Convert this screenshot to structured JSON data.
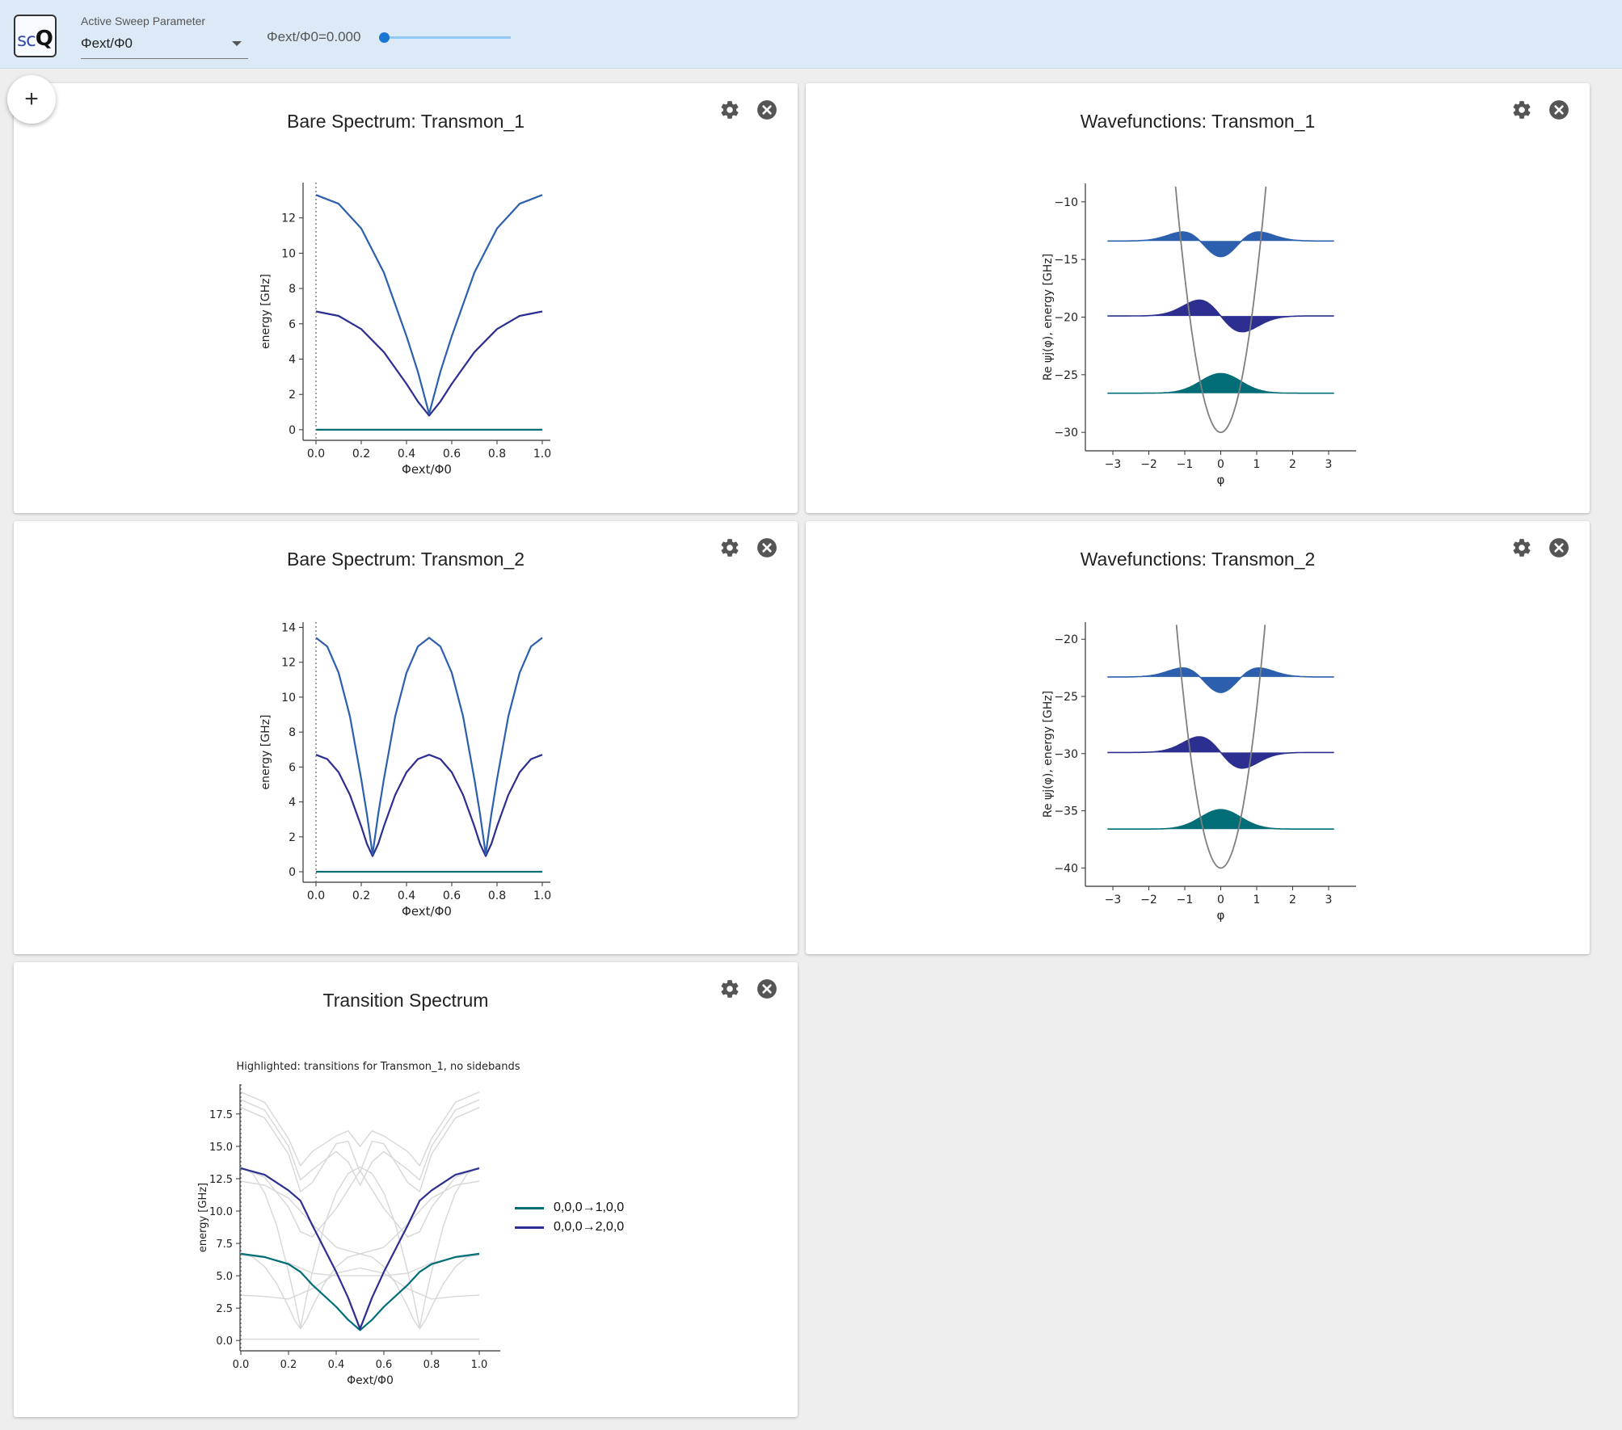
{
  "app": {
    "logo_sc": "sc",
    "logo_q": "Q"
  },
  "toolbar": {
    "sweep_label": "Active Sweep Parameter",
    "sweep_value": "Φext/Φ0",
    "slider_text": "Φext/Φ0=0.000",
    "slider_value": 0.0,
    "add_label": "+"
  },
  "colors": {
    "teal": "#006d77",
    "navy": "#2c2f8f",
    "blue": "#2c5fae",
    "gray": "#7f7f7f",
    "light": "#d7d7d7"
  },
  "panels": {
    "bare1": {
      "title": "Bare Spectrum: Transmon_1"
    },
    "wf1": {
      "title": "Wavefunctions: Transmon_1"
    },
    "bare2": {
      "title": "Bare Spectrum: Transmon_2"
    },
    "wf2": {
      "title": "Wavefunctions: Transmon_2"
    },
    "trans": {
      "title": "Transition Spectrum"
    }
  },
  "chart_data": [
    {
      "id": "bare1",
      "type": "line",
      "xlabel": "Φext/Φ0",
      "ylabel": "energy [GHz]",
      "xlim": [
        0,
        1
      ],
      "ylim": [
        -0.6,
        14
      ],
      "xticks": [
        0.0,
        0.2,
        0.4,
        0.6,
        0.8,
        1.0
      ],
      "yticks": [
        0,
        2,
        4,
        6,
        8,
        10,
        12
      ],
      "xtick_labels": [
        "0.0",
        "0.2",
        "0.4",
        "0.6",
        "0.8",
        "1.0"
      ],
      "ytick_labels": [
        "0",
        "2",
        "4",
        "6",
        "8",
        "10",
        "12"
      ],
      "marker_x": 0.0,
      "series": [
        {
          "color": "#006d77",
          "x": [
            0,
            0.5,
            1
          ],
          "y": [
            0,
            0,
            0
          ]
        },
        {
          "color": "#2c2f8f",
          "x": [
            0,
            0.1,
            0.2,
            0.3,
            0.4,
            0.45,
            0.5,
            0.55,
            0.6,
            0.7,
            0.8,
            0.9,
            1.0
          ],
          "y": [
            6.7,
            6.45,
            5.7,
            4.4,
            2.6,
            1.6,
            0.8,
            1.6,
            2.6,
            4.4,
            5.7,
            6.45,
            6.7
          ]
        },
        {
          "color": "#2c5fae",
          "x": [
            0,
            0.1,
            0.2,
            0.3,
            0.4,
            0.45,
            0.5,
            0.55,
            0.6,
            0.7,
            0.8,
            0.9,
            1.0
          ],
          "y": [
            13.3,
            12.8,
            11.4,
            8.9,
            5.3,
            3.3,
            0.9,
            3.3,
            5.3,
            8.9,
            11.4,
            12.8,
            13.3
          ]
        }
      ]
    },
    {
      "id": "bare2",
      "type": "line",
      "xlabel": "Φext/Φ0",
      "ylabel": "energy [GHz]",
      "xlim": [
        0,
        1
      ],
      "ylim": [
        -0.6,
        14.3
      ],
      "xticks": [
        0.0,
        0.2,
        0.4,
        0.6,
        0.8,
        1.0
      ],
      "yticks": [
        0,
        2,
        4,
        6,
        8,
        10,
        12,
        14
      ],
      "xtick_labels": [
        "0.0",
        "0.2",
        "0.4",
        "0.6",
        "0.8",
        "1.0"
      ],
      "ytick_labels": [
        "0",
        "2",
        "4",
        "6",
        "8",
        "10",
        "12",
        "14"
      ],
      "marker_x": 0.0,
      "series": [
        {
          "color": "#006d77",
          "x": [
            0,
            0.5,
            1
          ],
          "y": [
            0,
            0,
            0
          ]
        },
        {
          "color": "#2c2f8f",
          "x": [
            0,
            0.05,
            0.1,
            0.15,
            0.2,
            0.225,
            0.25,
            0.275,
            0.3,
            0.35,
            0.4,
            0.45,
            0.5,
            0.55,
            0.6,
            0.65,
            0.7,
            0.725,
            0.75,
            0.775,
            0.8,
            0.85,
            0.9,
            0.95,
            1.0
          ],
          "y": [
            6.7,
            6.45,
            5.7,
            4.4,
            2.6,
            1.6,
            0.9,
            1.6,
            2.6,
            4.4,
            5.7,
            6.45,
            6.7,
            6.45,
            5.7,
            4.4,
            2.6,
            1.6,
            0.9,
            1.6,
            2.6,
            4.4,
            5.7,
            6.45,
            6.7
          ]
        },
        {
          "color": "#2c5fae",
          "x": [
            0,
            0.05,
            0.1,
            0.15,
            0.2,
            0.225,
            0.25,
            0.275,
            0.3,
            0.35,
            0.4,
            0.45,
            0.5,
            0.55,
            0.6,
            0.65,
            0.7,
            0.725,
            0.75,
            0.775,
            0.8,
            0.85,
            0.9,
            0.95,
            1.0
          ],
          "y": [
            13.4,
            12.9,
            11.4,
            8.9,
            5.3,
            3.3,
            1.0,
            3.3,
            5.3,
            8.9,
            11.4,
            12.9,
            13.4,
            12.9,
            11.4,
            8.9,
            5.3,
            3.3,
            1.0,
            3.3,
            5.3,
            8.9,
            11.4,
            12.9,
            13.4
          ]
        }
      ]
    },
    {
      "id": "wf1",
      "type": "area",
      "xlabel": "φ",
      "ylabel": "Re ψj(φ),  energy [GHz]",
      "xlim": [
        -3.45,
        3.45
      ],
      "ylim": [
        -31.6,
        -8.4
      ],
      "xticks": [
        -3,
        -2,
        -1,
        0,
        1,
        2,
        3
      ],
      "yticks": [
        -10,
        -15,
        -20,
        -25,
        -30
      ],
      "xtick_labels": [
        "−3",
        "−2",
        "−1",
        "0",
        "1",
        "2",
        "3"
      ],
      "ytick_labels": [
        "−10",
        "−15",
        "−20",
        "−25",
        "−30"
      ],
      "potential": {
        "min": -30,
        "coef": 13.5,
        "color": "#7f7f7f"
      },
      "levels": [
        {
          "offset": -26.6,
          "kind": 0,
          "amp": 1.7,
          "color": "#006d77"
        },
        {
          "offset": -19.9,
          "kind": 1,
          "amp": 1.8,
          "color": "#2c2f8f"
        },
        {
          "offset": -13.4,
          "kind": 2,
          "amp": 1.5,
          "color": "#2c5fae"
        }
      ]
    },
    {
      "id": "wf2",
      "type": "area",
      "xlabel": "φ",
      "ylabel": "Re ψj(φ),  energy [GHz]",
      "xlim": [
        -3.45,
        3.45
      ],
      "ylim": [
        -41.6,
        -18.5
      ],
      "xticks": [
        -3,
        -2,
        -1,
        0,
        1,
        2,
        3
      ],
      "yticks": [
        -20,
        -25,
        -30,
        -35,
        -40
      ],
      "xtick_labels": [
        "−3",
        "−2",
        "−1",
        "0",
        "1",
        "2",
        "3"
      ],
      "ytick_labels": [
        "−20",
        "−25",
        "−30",
        "−35",
        "−40"
      ],
      "potential": {
        "min": -40,
        "coef": 14,
        "color": "#7f7f7f"
      },
      "levels": [
        {
          "offset": -36.6,
          "kind": 0,
          "amp": 1.7,
          "color": "#006d77"
        },
        {
          "offset": -29.9,
          "kind": 1,
          "amp": 1.8,
          "color": "#2c2f8f"
        },
        {
          "offset": -23.3,
          "kind": 2,
          "amp": 1.5,
          "color": "#2c5fae"
        }
      ]
    },
    {
      "id": "trans",
      "type": "line",
      "title": "Highlighted: transitions for Transmon_1, no sidebands",
      "xlabel": "Φext/Φ0",
      "ylabel": "energy [GHz]",
      "xlim": [
        0,
        1
      ],
      "ylim": [
        -0.8,
        19.8
      ],
      "xticks": [
        0.0,
        0.2,
        0.4,
        0.6,
        0.8,
        1.0
      ],
      "yticks": [
        0,
        2.5,
        5,
        7.5,
        10,
        12.5,
        15,
        17.5
      ],
      "xtick_labels": [
        "0.0",
        "0.2",
        "0.4",
        "0.6",
        "0.8",
        "1.0"
      ],
      "ytick_labels": [
        "0.0",
        "2.5",
        "5.0",
        "7.5",
        "10.0",
        "12.5",
        "15.0",
        "17.5"
      ],
      "marker_x": 0.0,
      "background_color": "#d7d7d7",
      "legend": [
        "0,0,0→1,0,0",
        "0,0,0→2,0,0"
      ],
      "series": [
        {
          "name": "0,0,0→1,0,0",
          "color": "#006d77",
          "x": [
            0,
            0.1,
            0.2,
            0.25,
            0.3,
            0.4,
            0.45,
            0.5,
            0.55,
            0.6,
            0.7,
            0.75,
            0.8,
            0.9,
            1.0
          ],
          "y": [
            6.7,
            6.45,
            5.9,
            5.3,
            4.3,
            2.6,
            1.6,
            0.8,
            1.6,
            2.6,
            4.3,
            5.3,
            5.9,
            6.45,
            6.7
          ]
        },
        {
          "name": "0,0,0→2,0,0",
          "color": "#2c2f8f",
          "x": [
            0,
            0.1,
            0.2,
            0.25,
            0.3,
            0.4,
            0.45,
            0.5,
            0.55,
            0.6,
            0.7,
            0.75,
            0.8,
            0.9,
            1.0
          ],
          "y": [
            13.3,
            12.8,
            11.6,
            10.8,
            8.9,
            5.3,
            3.3,
            0.9,
            3.3,
            5.3,
            8.9,
            10.8,
            11.6,
            12.8,
            13.3
          ]
        },
        {
          "name": "",
          "color": "#d7d7d7",
          "x": [
            0,
            0.05,
            0.1,
            0.15,
            0.2,
            0.225,
            0.25,
            0.275,
            0.3,
            0.35,
            0.4,
            0.45,
            0.5,
            0.55,
            0.6,
            0.65,
            0.7,
            0.725,
            0.75,
            0.775,
            0.8,
            0.85,
            0.9,
            0.95,
            1.0
          ],
          "y": [
            6.7,
            6.45,
            5.7,
            4.4,
            2.6,
            1.6,
            0.9,
            1.6,
            2.6,
            4.4,
            5.7,
            6.45,
            6.7,
            6.45,
            5.7,
            4.4,
            2.6,
            1.6,
            0.9,
            1.6,
            2.6,
            4.4,
            5.7,
            6.45,
            6.7
          ]
        },
        {
          "name": "",
          "color": "#d7d7d7",
          "x": [
            0,
            0.05,
            0.1,
            0.15,
            0.2,
            0.225,
            0.25,
            0.275,
            0.3,
            0.35,
            0.4,
            0.45,
            0.5,
            0.55,
            0.6,
            0.65,
            0.7,
            0.725,
            0.75,
            0.775,
            0.8,
            0.85,
            0.9,
            0.95,
            1.0
          ],
          "y": [
            13.4,
            12.9,
            11.4,
            8.9,
            5.3,
            3.3,
            1.0,
            3.3,
            5.3,
            8.9,
            11.4,
            12.9,
            13.4,
            12.9,
            11.4,
            8.9,
            5.3,
            3.3,
            1.0,
            3.3,
            5.3,
            8.9,
            11.4,
            12.9,
            13.4
          ]
        },
        {
          "name": "",
          "color": "#d7d7d7",
          "x": [
            0,
            0.1,
            0.2,
            0.25,
            0.3,
            0.4,
            0.5,
            0.6,
            0.7,
            0.75,
            0.8,
            0.9,
            1.0
          ],
          "y": [
            13.4,
            12.6,
            10.3,
            8.4,
            8.0,
            10.2,
            13.1,
            10.2,
            8.0,
            8.4,
            10.3,
            12.6,
            13.4
          ]
        },
        {
          "name": "",
          "color": "#d7d7d7",
          "x": [
            0,
            0.1,
            0.2,
            0.25,
            0.3,
            0.4,
            0.45,
            0.5,
            0.55,
            0.6,
            0.7,
            0.75,
            0.8,
            0.9,
            1.0
          ],
          "y": [
            18.0,
            17.2,
            14.4,
            11.5,
            12.2,
            15.2,
            15.4,
            13.0,
            15.4,
            15.2,
            12.2,
            11.5,
            14.4,
            17.2,
            18.0
          ]
        },
        {
          "name": "",
          "color": "#d7d7d7",
          "x": [
            0,
            0.1,
            0.2,
            0.25,
            0.3,
            0.4,
            0.45,
            0.5,
            0.55,
            0.6,
            0.7,
            0.75,
            0.8,
            0.9,
            1.0
          ],
          "y": [
            19.2,
            18.4,
            15.6,
            13.5,
            14.6,
            15.8,
            16.2,
            15.0,
            16.2,
            15.8,
            14.6,
            13.5,
            15.6,
            18.4,
            19.2
          ]
        },
        {
          "name": "",
          "color": "#d7d7d7",
          "x": [
            0,
            0.1,
            0.2,
            0.3,
            0.4,
            0.5,
            0.6,
            0.7,
            0.8,
            0.9,
            1.0
          ],
          "y": [
            12.3,
            12.0,
            11.0,
            9.0,
            7.2,
            6.7,
            7.2,
            9.0,
            11.0,
            12.0,
            12.3
          ]
        },
        {
          "name": "",
          "color": "#d7d7d7",
          "x": [
            0,
            0.1,
            0.2,
            0.25,
            0.3,
            0.4,
            0.45,
            0.5,
            0.55,
            0.6,
            0.7,
            0.75,
            0.8,
            0.9,
            1.0
          ],
          "y": [
            18.6,
            17.8,
            15.0,
            12.4,
            13.2,
            14.6,
            13.8,
            12.0,
            13.8,
            14.6,
            13.2,
            12.4,
            15.0,
            17.8,
            18.6
          ]
        },
        {
          "name": "",
          "color": "#d7d7d7",
          "x": [
            0,
            0.1,
            0.2,
            0.25,
            0.3,
            0.4,
            0.5,
            0.6,
            0.7,
            0.75,
            0.8,
            0.9,
            1.0
          ],
          "y": [
            6.6,
            6.4,
            6.0,
            5.6,
            5.2,
            5.0,
            5.0,
            5.0,
            5.2,
            5.6,
            6.0,
            6.4,
            6.6
          ]
        },
        {
          "name": "",
          "color": "#d7d7d7",
          "x": [
            0,
            0.1,
            0.2,
            0.3,
            0.4,
            0.5,
            0.6,
            0.7,
            0.8,
            0.9,
            1.0
          ],
          "y": [
            3.5,
            3.4,
            3.2,
            4.0,
            5.2,
            5.6,
            5.2,
            4.0,
            3.2,
            3.4,
            3.5
          ]
        },
        {
          "name": "",
          "color": "#d7d7d7",
          "x": [
            0,
            0.5,
            1.0
          ],
          "y": [
            0.1,
            0.1,
            0.1
          ]
        }
      ]
    }
  ]
}
